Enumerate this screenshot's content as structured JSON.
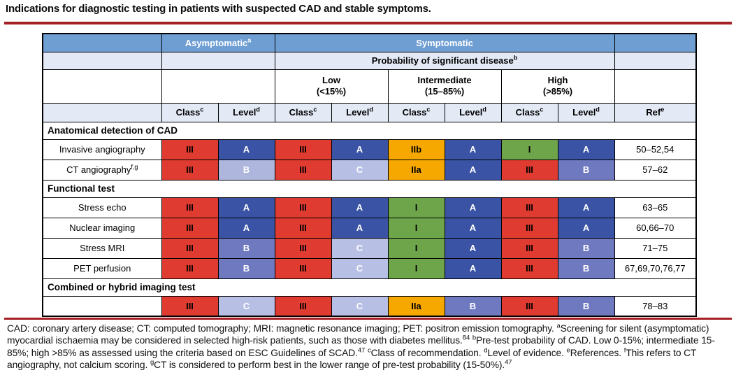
{
  "title": "Indications for diagnostic testing in patients with suspected CAD and stable symptoms.",
  "colors": {
    "classIII": "#e03b30",
    "classI": "#6ea54b",
    "classII": "#f6a800",
    "levelA": "#3a53a4",
    "levelB": "#6f79c0",
    "levelBlight": "#aeb6de",
    "levelC": "#b8bfe5",
    "headerBlue": "#6f9ed3",
    "lavender": "#e3e9f5",
    "ruleRed": "#a42025"
  },
  "table": {
    "header": {
      "asymptomatic": "Asymptomatic",
      "asymptomatic_sup": "a",
      "symptomatic": "Symptomatic",
      "probability": "Probability of significant disease",
      "probability_sup": "b",
      "groups": [
        {
          "line1": "Low",
          "line2": "(<15%)"
        },
        {
          "line1": "Intermediate",
          "line2": "(15–85%)"
        },
        {
          "line1": "High",
          "line2": "(>85%)"
        }
      ],
      "class_label": "Class",
      "class_sup": "c",
      "level_label": "Level",
      "level_sup": "d",
      "ref_label": "Ref",
      "ref_sup": "e"
    },
    "rows": [
      {
        "section": "Anatomical detection of CAD"
      },
      {
        "label": "Invasive angiography",
        "label_sup": "",
        "cells": [
          {
            "v": "III",
            "bg": "classIII",
            "fg": "dark"
          },
          {
            "v": "A",
            "bg": "levelA",
            "fg": "light"
          },
          {
            "v": "III",
            "bg": "classIII",
            "fg": "dark"
          },
          {
            "v": "A",
            "bg": "levelA",
            "fg": "light"
          },
          {
            "v": "IIb",
            "bg": "classII",
            "fg": "dark"
          },
          {
            "v": "A",
            "bg": "levelA",
            "fg": "light"
          },
          {
            "v": "I",
            "bg": "classI",
            "fg": "dark"
          },
          {
            "v": "A",
            "bg": "levelA",
            "fg": "light"
          }
        ],
        "ref": "50–52,54"
      },
      {
        "label": "CT angiography",
        "label_sup": "f,g",
        "cells": [
          {
            "v": "III",
            "bg": "classIII",
            "fg": "dark"
          },
          {
            "v": "B",
            "bg": "levelBlight",
            "fg": "light"
          },
          {
            "v": "III",
            "bg": "classIII",
            "fg": "dark"
          },
          {
            "v": "C",
            "bg": "levelC",
            "fg": "light"
          },
          {
            "v": "IIa",
            "bg": "classII",
            "fg": "dark"
          },
          {
            "v": "A",
            "bg": "levelA",
            "fg": "light"
          },
          {
            "v": "III",
            "bg": "classIII",
            "fg": "dark"
          },
          {
            "v": "B",
            "bg": "levelB",
            "fg": "light"
          }
        ],
        "ref": "57–62"
      },
      {
        "section": "Functional test"
      },
      {
        "label": "Stress echo",
        "label_sup": "",
        "cells": [
          {
            "v": "III",
            "bg": "classIII",
            "fg": "dark"
          },
          {
            "v": "A",
            "bg": "levelA",
            "fg": "light"
          },
          {
            "v": "III",
            "bg": "classIII",
            "fg": "dark"
          },
          {
            "v": "A",
            "bg": "levelA",
            "fg": "light"
          },
          {
            "v": "I",
            "bg": "classI",
            "fg": "dark"
          },
          {
            "v": "A",
            "bg": "levelA",
            "fg": "light"
          },
          {
            "v": "III",
            "bg": "classIII",
            "fg": "dark"
          },
          {
            "v": "A",
            "bg": "levelA",
            "fg": "light"
          }
        ],
        "ref": "63–65"
      },
      {
        "label": "Nuclear imaging",
        "label_sup": "",
        "cells": [
          {
            "v": "III",
            "bg": "classIII",
            "fg": "dark"
          },
          {
            "v": "A",
            "bg": "levelA",
            "fg": "light"
          },
          {
            "v": "III",
            "bg": "classIII",
            "fg": "dark"
          },
          {
            "v": "A",
            "bg": "levelA",
            "fg": "light"
          },
          {
            "v": "I",
            "bg": "classI",
            "fg": "dark"
          },
          {
            "v": "A",
            "bg": "levelA",
            "fg": "light"
          },
          {
            "v": "III",
            "bg": "classIII",
            "fg": "dark"
          },
          {
            "v": "A",
            "bg": "levelA",
            "fg": "light"
          }
        ],
        "ref": "60,66–70"
      },
      {
        "label": "Stress MRI",
        "label_sup": "",
        "cells": [
          {
            "v": "III",
            "bg": "classIII",
            "fg": "dark"
          },
          {
            "v": "B",
            "bg": "levelB",
            "fg": "light"
          },
          {
            "v": "III",
            "bg": "classIII",
            "fg": "dark"
          },
          {
            "v": "C",
            "bg": "levelC",
            "fg": "light"
          },
          {
            "v": "I",
            "bg": "classI",
            "fg": "dark"
          },
          {
            "v": "A",
            "bg": "levelA",
            "fg": "light"
          },
          {
            "v": "III",
            "bg": "classIII",
            "fg": "dark"
          },
          {
            "v": "B",
            "bg": "levelB",
            "fg": "light"
          }
        ],
        "ref": "71–75"
      },
      {
        "label": "PET perfusion",
        "label_sup": "",
        "cells": [
          {
            "v": "III",
            "bg": "classIII",
            "fg": "dark"
          },
          {
            "v": "B",
            "bg": "levelB",
            "fg": "light"
          },
          {
            "v": "III",
            "bg": "classIII",
            "fg": "dark"
          },
          {
            "v": "C",
            "bg": "levelC",
            "fg": "light"
          },
          {
            "v": "I",
            "bg": "classI",
            "fg": "dark"
          },
          {
            "v": "A",
            "bg": "levelA",
            "fg": "light"
          },
          {
            "v": "III",
            "bg": "classIII",
            "fg": "dark"
          },
          {
            "v": "B",
            "bg": "levelB",
            "fg": "light"
          }
        ],
        "ref": "67,69,70,76,77"
      },
      {
        "section": "Combined or hybrid imaging test"
      },
      {
        "label": "",
        "label_sup": "",
        "cells": [
          {
            "v": "III",
            "bg": "classIII",
            "fg": "dark"
          },
          {
            "v": "C",
            "bg": "levelC",
            "fg": "light"
          },
          {
            "v": "III",
            "bg": "classIII",
            "fg": "dark"
          },
          {
            "v": "C",
            "bg": "levelC",
            "fg": "light"
          },
          {
            "v": "IIa",
            "bg": "classII",
            "fg": "dark"
          },
          {
            "v": "B",
            "bg": "levelB",
            "fg": "light"
          },
          {
            "v": "III",
            "bg": "classIII",
            "fg": "dark"
          },
          {
            "v": "B",
            "bg": "levelB",
            "fg": "light"
          }
        ],
        "ref": "78–83"
      }
    ]
  },
  "footnote": {
    "segments": [
      {
        "text": "CAD: coronary artery disease; CT: computed tomography; MRI: magnetic resonance imaging; PET: positron emission tomography. "
      },
      {
        "sup": "a"
      },
      {
        "text": "Screening for silent (asymptomatic) myocardial ischaemia may be considered in selected high-risk patients, such as those with diabetes mellitus."
      },
      {
        "sup": "84"
      },
      {
        "text": " "
      },
      {
        "sup": "b"
      },
      {
        "text": "Pre-test probability of CAD. Low 0-15%; intermediate 15-85%; high >85% as assessed using the criteria based on ESC Guidelines of SCAD."
      },
      {
        "sup": "47"
      },
      {
        "text": " "
      },
      {
        "sup": "c"
      },
      {
        "text": "Class of recommendation. "
      },
      {
        "sup": "d"
      },
      {
        "text": "Level of evidence. "
      },
      {
        "sup": "e"
      },
      {
        "text": "References. "
      },
      {
        "sup": "f"
      },
      {
        "text": "This refers to CT angiography, not calcium scoring. "
      },
      {
        "sup": "g"
      },
      {
        "text": "CT is considered to perform best in the lower range of pre-test probability (15-50%)."
      },
      {
        "sup": "47"
      }
    ]
  }
}
